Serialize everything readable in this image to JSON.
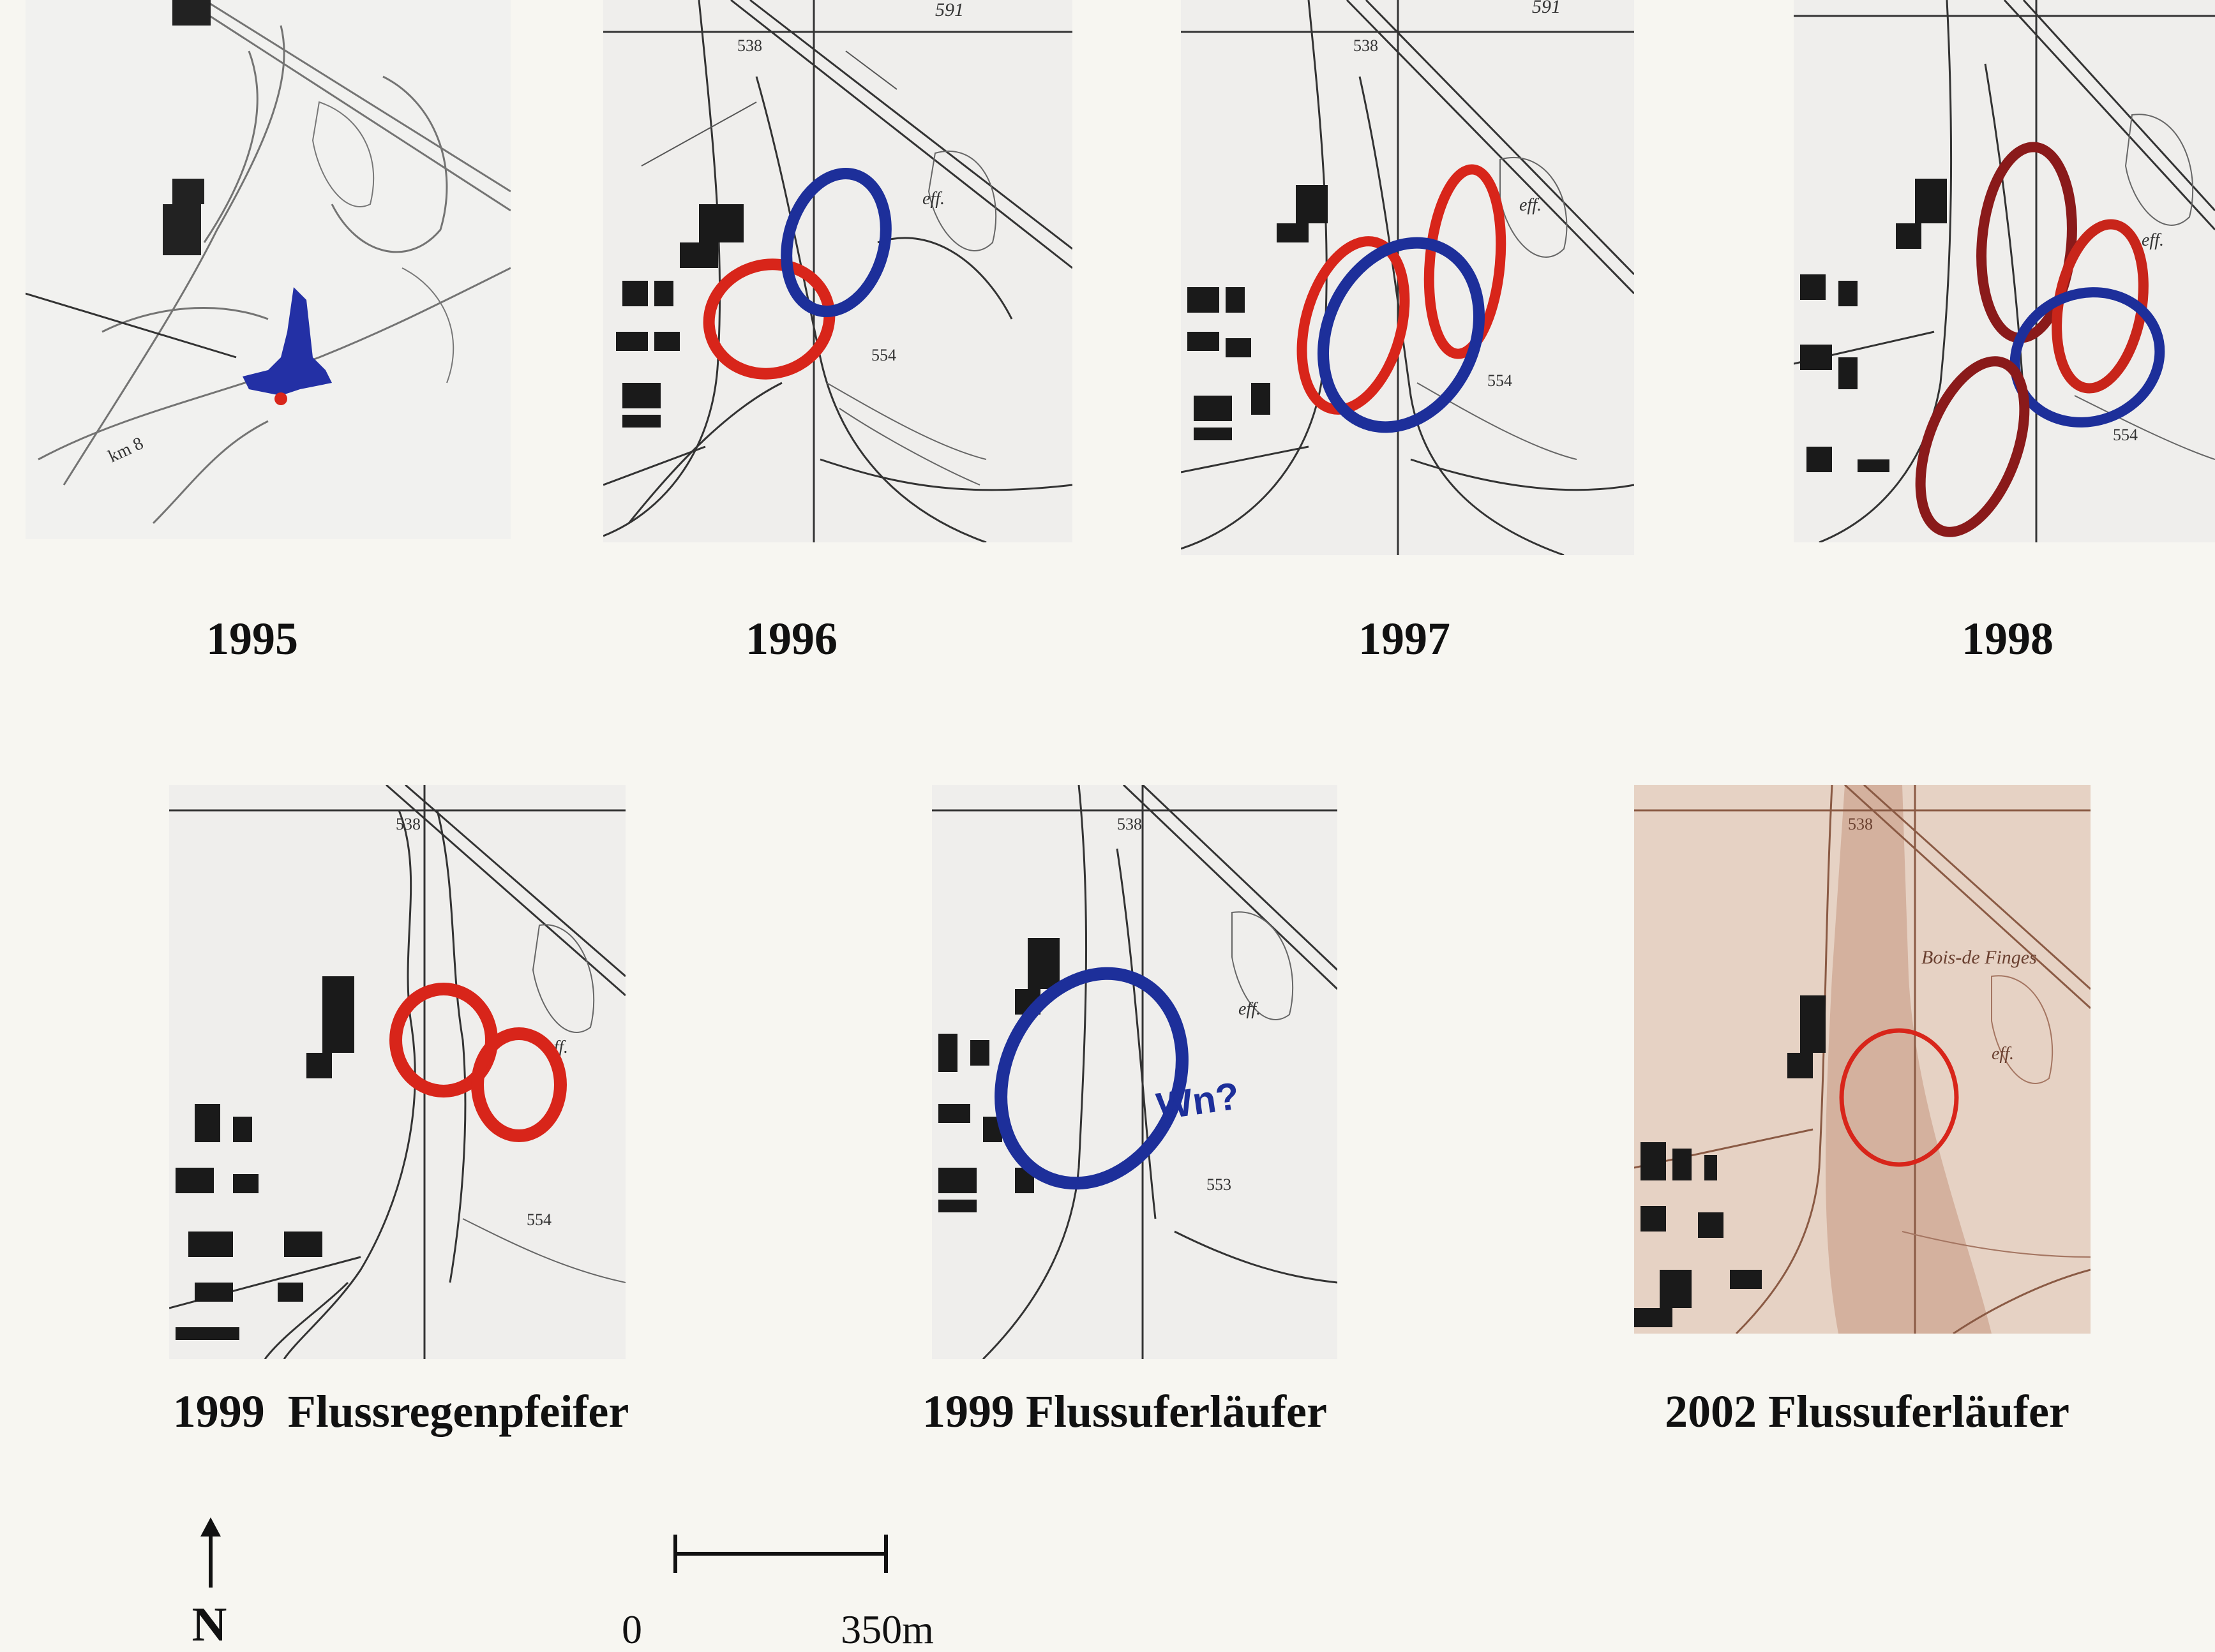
{
  "panels": [
    {
      "id": "1995",
      "caption": "1995",
      "tint": "grey"
    },
    {
      "id": "1996",
      "caption": "1996",
      "tint": "grey"
    },
    {
      "id": "1997",
      "caption": "1997",
      "tint": "grey"
    },
    {
      "id": "1998",
      "caption": "1998",
      "tint": "grey"
    },
    {
      "id": "1999a",
      "caption": "1999  Flussregenpfeifer",
      "tint": "grey"
    },
    {
      "id": "1999b",
      "caption": "1999 Flussuferläufer",
      "tint": "grey"
    },
    {
      "id": "2002",
      "caption": "2002 Flussuferläufer",
      "tint": "sepia"
    }
  ],
  "map_labels": {
    "p1995": [
      "km 8"
    ],
    "p1996": [
      "538",
      "591",
      "eff.",
      "554"
    ],
    "p1997": [
      "591",
      "538",
      "eff.",
      "554"
    ],
    "p1998": [
      "eff.",
      "554"
    ],
    "p1999a": [
      "538",
      "eff.",
      "554"
    ],
    "p1999b": [
      "538",
      "eff.",
      "553",
      "Wn?"
    ],
    "p2002": [
      "538",
      "Bois-de Finges",
      "eff."
    ]
  },
  "colors": {
    "red": "#d8251a",
    "blue": "#1d2f9a",
    "dark_red": "#8a1a1a",
    "ink": "#1a1a1a"
  },
  "legend": {
    "north_letter": "N",
    "scale_start": "0",
    "scale_end": "350m"
  }
}
